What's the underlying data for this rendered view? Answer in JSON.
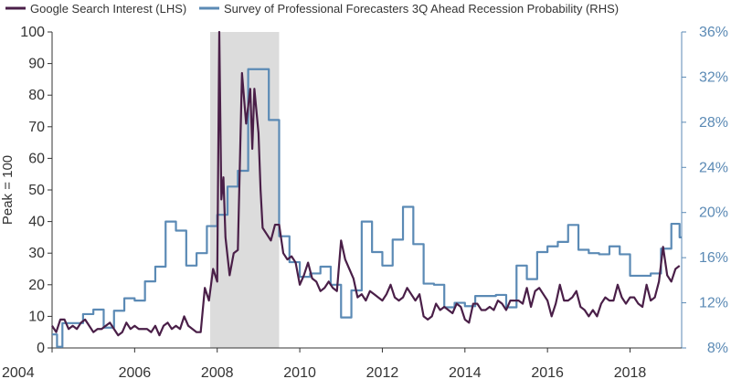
{
  "chart_data": {
    "type": "line",
    "title": "",
    "xlabel": "",
    "ylabel": "Peak = 100",
    "xlim": [
      2004,
      2019.25
    ],
    "ylim": [
      0,
      100
    ],
    "y2lim": [
      8,
      36
    ],
    "grid": false,
    "legend_position": "top-left",
    "x_ticks": [
      2004,
      2006,
      2008,
      2010,
      2012,
      2014,
      2016,
      2018
    ],
    "x_tick_labels": [
      "2004",
      "2006",
      "2008",
      "2010",
      "2012",
      "2014",
      "2016",
      "2018"
    ],
    "y_ticks": [
      0,
      10,
      20,
      30,
      40,
      50,
      60,
      70,
      80,
      90,
      100
    ],
    "y_tick_labels": [
      "0",
      "10",
      "20",
      "30",
      "40",
      "50",
      "60",
      "70",
      "80",
      "90",
      "100"
    ],
    "y2_ticks": [
      8,
      12,
      16,
      20,
      24,
      28,
      32,
      36
    ],
    "y2_tick_labels": [
      "8%",
      "12%",
      "16%",
      "20%",
      "24%",
      "28%",
      "32%",
      "36%"
    ],
    "recession_shading": [
      2007.83,
      2009.5
    ],
    "series": [
      {
        "name": "Google Search Interest (LHS)",
        "axis": "left",
        "color": "#4a1f48",
        "x": [
          2004.0,
          2004.1,
          2004.2,
          2004.3,
          2004.4,
          2004.5,
          2004.6,
          2004.7,
          2004.8,
          2004.9,
          2005.0,
          2005.1,
          2005.2,
          2005.3,
          2005.4,
          2005.5,
          2005.6,
          2005.7,
          2005.8,
          2005.9,
          2006.0,
          2006.1,
          2006.2,
          2006.3,
          2006.4,
          2006.5,
          2006.6,
          2006.7,
          2006.8,
          2006.9,
          2007.0,
          2007.1,
          2007.2,
          2007.3,
          2007.4,
          2007.5,
          2007.6,
          2007.7,
          2007.8,
          2007.9,
          2008.0,
          2008.05,
          2008.1,
          2008.15,
          2008.2,
          2008.3,
          2008.4,
          2008.5,
          2008.6,
          2008.7,
          2008.8,
          2008.85,
          2008.9,
          2009.0,
          2009.05,
          2009.1,
          2009.2,
          2009.3,
          2009.4,
          2009.5,
          2009.6,
          2009.7,
          2009.8,
          2009.9,
          2010.0,
          2010.1,
          2010.2,
          2010.3,
          2010.4,
          2010.5,
          2010.6,
          2010.7,
          2010.8,
          2010.9,
          2011.0,
          2011.1,
          2011.2,
          2011.3,
          2011.4,
          2011.5,
          2011.6,
          2011.7,
          2011.8,
          2011.9,
          2012.0,
          2012.1,
          2012.2,
          2012.3,
          2012.4,
          2012.5,
          2012.6,
          2012.7,
          2012.8,
          2012.9,
          2013.0,
          2013.1,
          2013.2,
          2013.3,
          2013.4,
          2013.5,
          2013.6,
          2013.7,
          2013.8,
          2013.9,
          2014.0,
          2014.1,
          2014.2,
          2014.3,
          2014.4,
          2014.5,
          2014.6,
          2014.7,
          2014.8,
          2014.9,
          2015.0,
          2015.1,
          2015.2,
          2015.3,
          2015.4,
          2015.5,
          2015.6,
          2015.7,
          2015.8,
          2015.9,
          2016.0,
          2016.1,
          2016.2,
          2016.3,
          2016.4,
          2016.5,
          2016.6,
          2016.7,
          2016.8,
          2016.9,
          2017.0,
          2017.1,
          2017.2,
          2017.3,
          2017.4,
          2017.5,
          2017.6,
          2017.7,
          2017.8,
          2017.9,
          2018.0,
          2018.1,
          2018.2,
          2018.3,
          2018.4,
          2018.5,
          2018.6,
          2018.7,
          2018.8,
          2018.9,
          2019.0,
          2019.1,
          2019.2
        ],
        "values": [
          7,
          5,
          9,
          9,
          6,
          7,
          6,
          8,
          9,
          7,
          5,
          6,
          6,
          7,
          8,
          6,
          4,
          5,
          8,
          6,
          7,
          6,
          6,
          6,
          5,
          7,
          4,
          7,
          8,
          6,
          7,
          6,
          10,
          7,
          6,
          5,
          5,
          19,
          15,
          25,
          21,
          100,
          47,
          54,
          35,
          23,
          30,
          31,
          87,
          71,
          82,
          63,
          82,
          68,
          50,
          38,
          36,
          34,
          39,
          39,
          30,
          28,
          29,
          27,
          20,
          23,
          27,
          22,
          21,
          18,
          19,
          21,
          19,
          18,
          34,
          28,
          25,
          22,
          16,
          17,
          15,
          18,
          17,
          16,
          15,
          17,
          20,
          16,
          15,
          16,
          19,
          17,
          15,
          17,
          10,
          9,
          10,
          14,
          12,
          13,
          12,
          11,
          14,
          13,
          9,
          8,
          14,
          14,
          12,
          12,
          13,
          12,
          15,
          14,
          12,
          15,
          15,
          15,
          14,
          19,
          13,
          18,
          19,
          17,
          15,
          10,
          14,
          20,
          15,
          15,
          16,
          18,
          13,
          12,
          10,
          12,
          10,
          14,
          16,
          15,
          15,
          20,
          16,
          14,
          16,
          16,
          14,
          13,
          20,
          15,
          16,
          21,
          32,
          23,
          21,
          25,
          26
        ]
      },
      {
        "name": "Survey of Professional Forecasters 3Q Ahead Recession Probability (RHS)",
        "axis": "right",
        "color": "#5b8ab5",
        "x": [
          2004.0,
          2004.12,
          2004.25,
          2004.5,
          2004.75,
          2005.0,
          2005.25,
          2005.5,
          2005.75,
          2006.0,
          2006.25,
          2006.5,
          2006.75,
          2007.0,
          2007.25,
          2007.5,
          2007.75,
          2008.0,
          2008.25,
          2008.5,
          2008.75,
          2009.0,
          2009.25,
          2009.5,
          2009.75,
          2010.0,
          2010.25,
          2010.5,
          2010.75,
          2011.0,
          2011.25,
          2011.5,
          2011.75,
          2012.0,
          2012.25,
          2012.5,
          2012.75,
          2013.0,
          2013.25,
          2013.5,
          2013.75,
          2014.0,
          2014.25,
          2014.5,
          2014.75,
          2015.0,
          2015.25,
          2015.5,
          2015.75,
          2016.0,
          2016.25,
          2016.5,
          2016.75,
          2017.0,
          2017.25,
          2017.5,
          2017.75,
          2018.0,
          2018.25,
          2018.5,
          2018.75,
          2019.0,
          2019.2
        ],
        "values": [
          9.2,
          8.1,
          10.2,
          10.2,
          11.0,
          11.4,
          9.8,
          11.3,
          12.4,
          12.2,
          13.9,
          15.2,
          19.2,
          18.4,
          15.3,
          16.4,
          18.8,
          19.8,
          22.3,
          23.7,
          32.7,
          32.7,
          28.2,
          17.9,
          15.6,
          14.3,
          14.6,
          15.2,
          13.6,
          10.7,
          13.1,
          19.2,
          16.5,
          15.3,
          17.6,
          20.5,
          17.2,
          13.7,
          13.6,
          11.6,
          12.0,
          11.7,
          12.6,
          12.6,
          12.7,
          11.6,
          15.3,
          14.1,
          16.5,
          17.0,
          17.4,
          18.9,
          16.7,
          16.4,
          16.3,
          17.0,
          16.3,
          14.4,
          14.4,
          14.6,
          16.8,
          19.0,
          17.8
        ]
      }
    ]
  }
}
